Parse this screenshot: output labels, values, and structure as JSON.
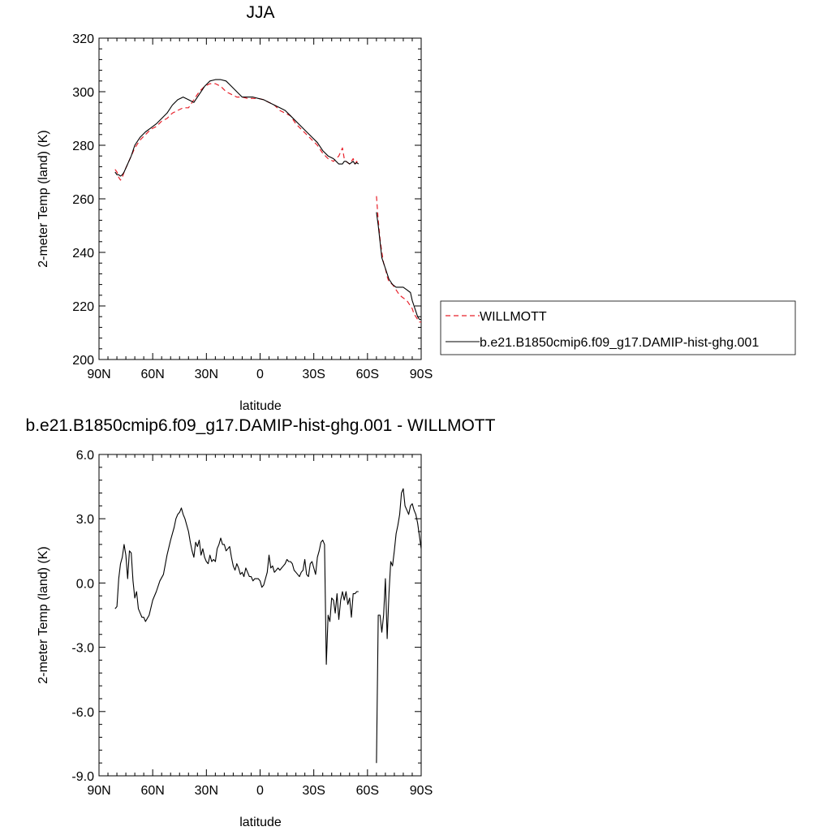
{
  "colors": {
    "obs": "#e8202a",
    "model": "#000000",
    "background": "#ffffff"
  },
  "chart_data": [
    {
      "type": "line",
      "title": "JJA",
      "xlabel": "latitude",
      "ylabel": "2-meter Temp (land) (K)",
      "xlim": [
        90,
        -90
      ],
      "ylim": [
        200,
        320
      ],
      "x_ticks": [
        90,
        60,
        30,
        0,
        -30,
        -60,
        -90
      ],
      "x_tick_labels": [
        "90N",
        "60N",
        "30N",
        "0",
        "30S",
        "60S",
        "90S"
      ],
      "y_ticks": [
        200,
        220,
        240,
        260,
        280,
        300,
        320
      ],
      "y_tick_labels": [
        "200",
        "220",
        "240",
        "260",
        "280",
        "300",
        "320"
      ],
      "legend": {
        "position": "right",
        "entries": [
          "WILLMOTT",
          "b.e21.B1850cmip6.f09_g17.DAMIP-hist-ghg.001"
        ]
      },
      "series": [
        {
          "name": "WILLMOTT",
          "style": "dashed",
          "color": "#e8202a",
          "segments": [
            {
              "x": [
                81,
                80,
                79,
                78,
                77,
                76,
                74,
                72,
                70,
                67,
                64,
                61,
                58,
                55,
                52,
                49,
                46,
                43,
                40,
                37,
                34,
                31,
                28,
                25,
                22,
                19,
                16,
                13,
                10,
                7,
                4,
                1,
                -2,
                -5,
                -8,
                -11,
                -14,
                -17,
                -20,
                -23,
                -26,
                -29,
                -32,
                -35,
                -38,
                -41,
                -44,
                -46,
                -47,
                -48,
                -50,
                -52,
                -53,
                -54,
                -55
              ],
              "y": [
                271,
                270,
                268,
                267,
                268,
                270,
                273,
                276,
                279,
                282,
                284,
                286,
                287,
                289,
                290,
                292,
                293,
                294,
                294,
                297,
                300,
                302,
                303,
                303,
                302,
                300,
                299,
                298,
                298,
                297.5,
                297.5,
                297.5,
                297,
                296,
                295,
                293,
                292,
                291,
                288,
                286,
                284,
                282,
                280,
                277,
                275,
                274,
                276,
                279,
                275,
                274,
                273,
                275,
                273,
                274,
                273
              ]
            },
            {
              "x": [
                -65,
                -66,
                -67,
                -68,
                -69,
                -70,
                -71,
                -72,
                -74,
                -76,
                -78,
                -80,
                -82,
                -84,
                -85,
                -86,
                -87,
                -88,
                -89,
                -90
              ],
              "y": [
                261,
                252,
                245,
                240,
                236,
                234,
                231,
                229,
                228,
                226,
                224,
                223,
                222,
                220,
                219,
                217,
                216,
                215,
                214,
                214
              ]
            }
          ]
        },
        {
          "name": "b.e21.B1850cmip6.f09_g17.DAMIP-hist-ghg.001",
          "style": "solid",
          "color": "#000000",
          "segments": [
            {
              "x": [
                81,
                80,
                79,
                78,
                77,
                76,
                74,
                72,
                70,
                67,
                64,
                61,
                58,
                55,
                52,
                49,
                46,
                43,
                40,
                37,
                34,
                31,
                28,
                25,
                22,
                19,
                16,
                13,
                10,
                7,
                4,
                1,
                -2,
                -5,
                -8,
                -11,
                -14,
                -17,
                -20,
                -23,
                -26,
                -29,
                -32,
                -35,
                -38,
                -41,
                -44,
                -46,
                -47,
                -48,
                -50,
                -52,
                -53,
                -54,
                -55
              ],
              "y": [
                270,
                269,
                269,
                268.5,
                269,
                270,
                273,
                276,
                280,
                283,
                285,
                286.5,
                288,
                290,
                292,
                295,
                297,
                298,
                297,
                296,
                299,
                302,
                304,
                304.5,
                304.5,
                304,
                302,
                300,
                298,
                298,
                298,
                297.5,
                297,
                296,
                295,
                294,
                293,
                291,
                289,
                287,
                285,
                283,
                281,
                278,
                276,
                275,
                273,
                273,
                274,
                274,
                273,
                274,
                273,
                273.5,
                273
              ]
            },
            {
              "x": [
                -65,
                -66,
                -67,
                -68,
                -69,
                -70,
                -71,
                -72,
                -74,
                -76,
                -78,
                -80,
                -82,
                -84,
                -85,
                -86,
                -87,
                -88,
                -89,
                -90
              ],
              "y": [
                255,
                250,
                244,
                238,
                236,
                234,
                232,
                230,
                228,
                227,
                227,
                227,
                226,
                225,
                222,
                220,
                218,
                216,
                215,
                215
              ]
            }
          ]
        }
      ]
    },
    {
      "type": "line",
      "title": "b.e21.B1850cmip6.f09_g17.DAMIP-hist-ghg.001 - WILLMOTT",
      "xlabel": "latitude",
      "ylabel": "2-meter Temp (land) (K)",
      "xlim": [
        90,
        -90
      ],
      "ylim": [
        -9,
        6
      ],
      "x_ticks": [
        90,
        60,
        30,
        0,
        -30,
        -60,
        -90
      ],
      "x_tick_labels": [
        "90N",
        "60N",
        "30N",
        "0",
        "30S",
        "60S",
        "90S"
      ],
      "y_ticks": [
        -9,
        -6,
        -3,
        0,
        3,
        6
      ],
      "y_tick_labels": [
        "-9.0",
        "-6.0",
        "-3.0",
        "0.0",
        "3.0",
        "6.0"
      ],
      "series": [
        {
          "style": "solid",
          "color": "#000000",
          "segments": [
            {
              "x": [
                81,
                80,
                79,
                78,
                77,
                76,
                75,
                74,
                73,
                72,
                71,
                70,
                69,
                68,
                67,
                66,
                65,
                64,
                62,
                60,
                58,
                56,
                54,
                52,
                50,
                48,
                47,
                46,
                45,
                44,
                43,
                42,
                41,
                40,
                39,
                38,
                37,
                36,
                35,
                34,
                33,
                32,
                31,
                30,
                29,
                28,
                27,
                26,
                25,
                24,
                23,
                22,
                21,
                20,
                19,
                18,
                17,
                16,
                15,
                14,
                13,
                12,
                11,
                10,
                9,
                8,
                7,
                6,
                5,
                4,
                3,
                2,
                1,
                0,
                -1,
                -2,
                -3,
                -4,
                -5,
                -6,
                -7,
                -8,
                -9,
                -10,
                -11,
                -12,
                -13,
                -14,
                -15,
                -16,
                -17,
                -18,
                -19,
                -20,
                -21,
                -22,
                -23,
                -24,
                -25,
                -26,
                -27,
                -28,
                -29,
                -30,
                -31,
                -32,
                -33,
                -34,
                -35,
                -36,
                -37,
                -38,
                -39,
                -40,
                -41,
                -42,
                -43,
                -44,
                -45,
                -46,
                -47,
                -48,
                -49,
                -50,
                -51,
                -52,
                -53,
                -54,
                -55
              ],
              "y": [
                -1.2,
                -1.1,
                0.2,
                0.9,
                1.2,
                1.8,
                1.3,
                0.2,
                1.5,
                1.4,
                0.1,
                -0.7,
                -0.4,
                -1.2,
                -1.4,
                -1.6,
                -1.6,
                -1.8,
                -1.5,
                -0.8,
                -0.4,
                0.1,
                0.4,
                1.3,
                2.0,
                2.6,
                3.0,
                3.2,
                3.3,
                3.5,
                3.2,
                3.0,
                2.7,
                2.4,
                1.9,
                1.5,
                1.2,
                1.9,
                1.7,
                2.0,
                1.3,
                1.6,
                1.2,
                1.0,
                0.9,
                1.3,
                1.0,
                1.1,
                1.0,
                1.6,
                1.8,
                2.1,
                1.8,
                1.8,
                1.5,
                1.6,
                1.7,
                1.2,
                0.8,
                0.6,
                0.9,
                0.7,
                0.4,
                0.5,
                0.3,
                0.7,
                0.5,
                0.3,
                0.3,
                0.1,
                0.2,
                0.2,
                0.2,
                0.1,
                -0.2,
                -0.1,
                0.2,
                0.5,
                1.3,
                0.7,
                0.8,
                0.5,
                0.6,
                0.7,
                0.6,
                0.7,
                0.8,
                0.9,
                1.1,
                1.0,
                1.0,
                0.9,
                0.6,
                0.5,
                0.4,
                0.3,
                0.5,
                0.6,
                1.1,
                0.4,
                0.3,
                0.9,
                1.0,
                0.7,
                0.4,
                1.2,
                1.5,
                1.9,
                2.0,
                1.8,
                -3.8,
                -1.5,
                -1.8,
                -0.7,
                -0.8,
                -1.4,
                -0.5,
                -1.7,
                -0.8,
                -0.4,
                -0.8,
                -0.4,
                -1.0,
                -0.7,
                -1.6,
                -0.5,
                -0.5,
                -0.4,
                -0.4
              ]
            },
            {
              "x": [
                -65,
                -66,
                -67,
                -68,
                -69,
                -70,
                -71,
                -72,
                -73,
                -74,
                -75,
                -76,
                -77,
                -78,
                -79,
                -80,
                -81,
                -82,
                -83,
                -84,
                -85,
                -86,
                -87,
                -88,
                -89,
                -90
              ],
              "y": [
                -8.4,
                -1.5,
                -1.5,
                -2.3,
                -1.5,
                0.2,
                -2.6,
                -0.5,
                1.0,
                0.8,
                1.5,
                2.3,
                2.7,
                3.2,
                4.2,
                4.4,
                3.6,
                3.4,
                3.2,
                3.6,
                3.7,
                3.4,
                3.2,
                2.8,
                2.2,
                1.6
              ]
            }
          ]
        }
      ]
    }
  ]
}
